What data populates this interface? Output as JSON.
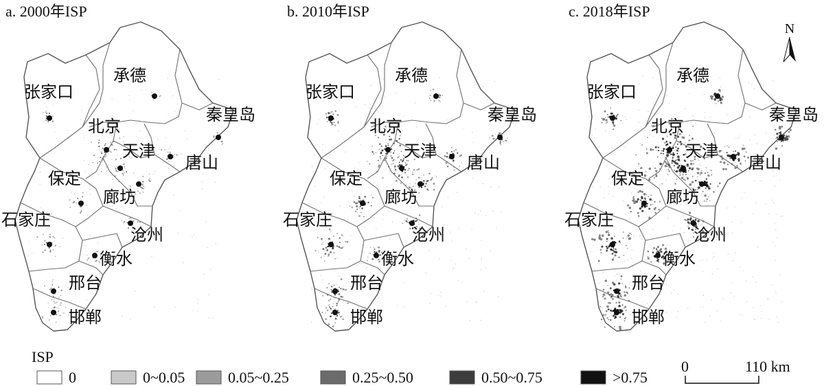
{
  "panels": [
    {
      "title": "a. 2000年ISP",
      "intensity": 0.45
    },
    {
      "title": "b. 2010年ISP",
      "intensity": 0.7
    },
    {
      "title": "c. 2018年ISP",
      "intensity": 1.0
    }
  ],
  "cities": [
    "承德",
    "张家口",
    "北京",
    "秦皇岛",
    "天津",
    "唐山",
    "保定",
    "廊坊",
    "石家庄",
    "沧州",
    "衡水",
    "邢台",
    "邯郸"
  ],
  "north_arrow": {
    "label": "N"
  },
  "legend": {
    "title": "ISP",
    "classes": [
      {
        "label": "0",
        "color": "#ffffff"
      },
      {
        "label": "0~0.05",
        "color": "#c9c9c9"
      },
      {
        "label": "0.05~0.25",
        "color": "#9b9b9b"
      },
      {
        "label": "0.25~0.50",
        "color": "#6b6b6b"
      },
      {
        "label": "0.50~0.75",
        "color": "#3c3c3c"
      },
      {
        "label": ">0.75",
        "color": "#111111"
      }
    ]
  },
  "scale_bar": {
    "left_label": "0",
    "right_label": "110 km"
  }
}
